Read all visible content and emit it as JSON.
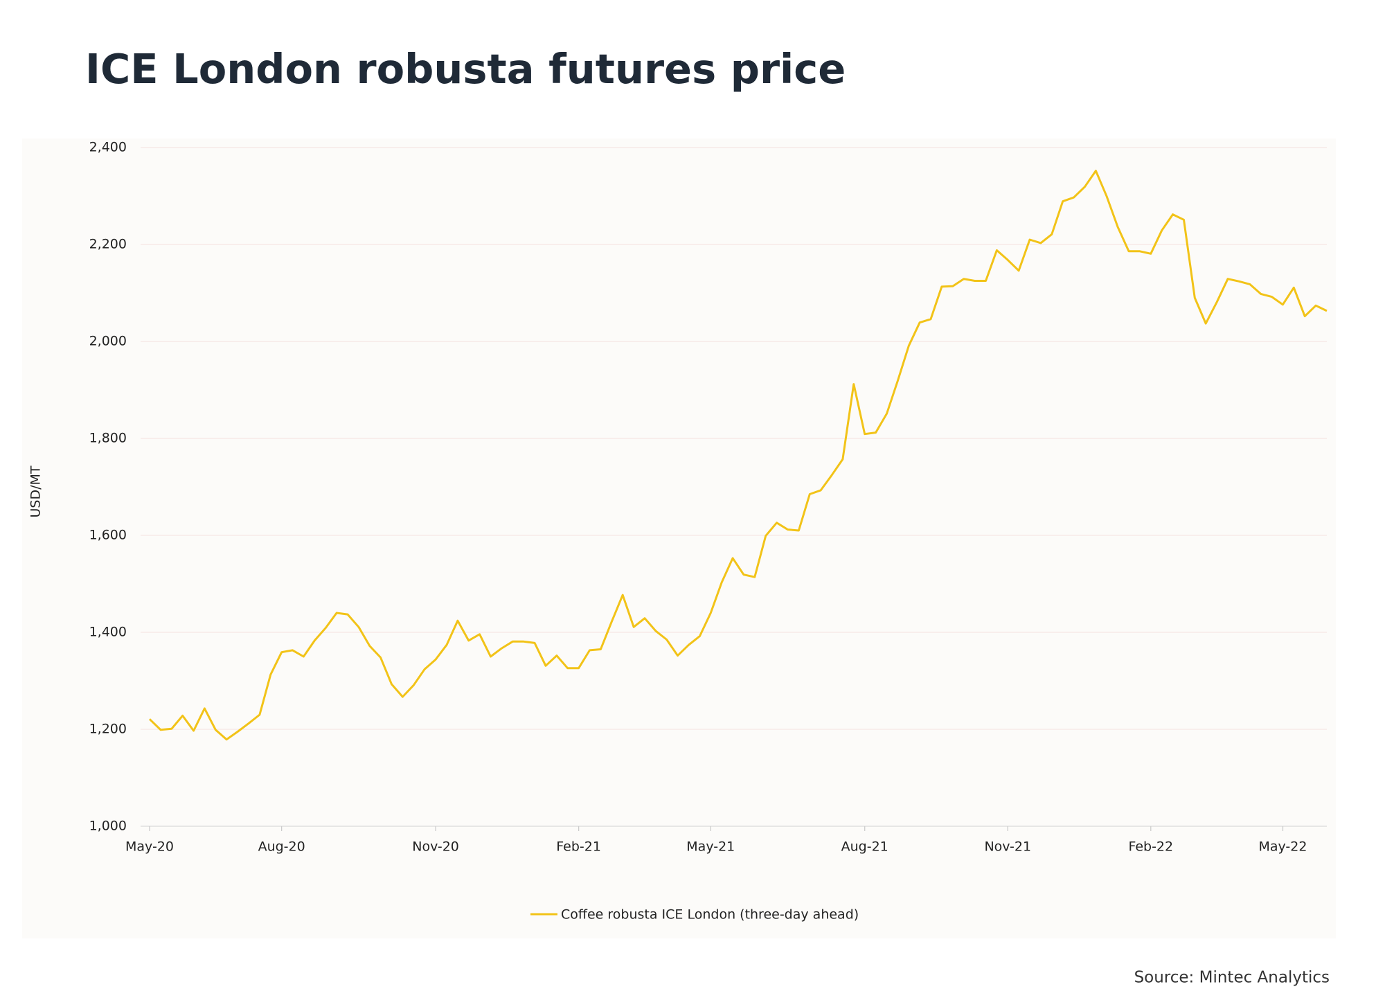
{
  "chart_data": {
    "type": "line",
    "title": "ICE London robusta futures price",
    "y_label": "USD/MT",
    "source": "Source: Mintec Analytics",
    "categories": [
      "May-20",
      null,
      null,
      null,
      null,
      null,
      null,
      null,
      null,
      null,
      null,
      null,
      "Aug-20",
      null,
      null,
      null,
      null,
      null,
      null,
      null,
      null,
      null,
      null,
      null,
      null,
      null,
      "Nov-20",
      null,
      null,
      null,
      null,
      null,
      null,
      null,
      null,
      null,
      null,
      null,
      null,
      "Feb-21",
      null,
      null,
      null,
      null,
      null,
      null,
      null,
      null,
      null,
      null,
      null,
      "May-21",
      null,
      null,
      null,
      null,
      null,
      null,
      null,
      null,
      null,
      null,
      null,
      null,
      null,
      "Aug-21",
      null,
      null,
      null,
      null,
      null,
      null,
      null,
      null,
      null,
      null,
      null,
      null,
      "Nov-21",
      null,
      null,
      null,
      null,
      null,
      null,
      null,
      null,
      null,
      null,
      null,
      null,
      "Feb-22",
      null,
      null,
      null,
      null,
      null,
      null,
      null,
      null,
      null,
      null,
      null,
      "May-22",
      null,
      null,
      null,
      null
    ],
    "series": [
      {
        "name": "Coffee robusta ICE London (three-day ahead)",
        "color": "#f2c318",
        "values": [
          1221,
          1199,
          1201,
          1228,
          1197,
          1243,
          1199,
          1179,
          1195,
          1212,
          1230,
          1313,
          1359,
          1363,
          1350,
          1383,
          1409,
          1440,
          1437,
          1411,
          1372,
          1348,
          1293,
          1267,
          1291,
          1324,
          1344,
          1374,
          1424,
          1383,
          1396,
          1350,
          1367,
          1381,
          1381,
          1378,
          1331,
          1352,
          1326,
          1326,
          1363,
          1365,
          1422,
          1477,
          1411,
          1429,
          1403,
          1385,
          1352,
          1374,
          1392,
          1440,
          1503,
          1553,
          1519,
          1514,
          1599,
          1626,
          1612,
          1610,
          1685,
          1693,
          1724,
          1757,
          1912,
          1809,
          1812,
          1851,
          1919,
          1991,
          2039,
          2046,
          2113,
          2114,
          2129,
          2125,
          2125,
          2188,
          2168,
          2146,
          2210,
          2203,
          2221,
          2289,
          2297,
          2319,
          2352,
          2299,
          2236,
          2186,
          2186,
          2181,
          2229,
          2262,
          2251,
          2090,
          2037,
          2081,
          2129,
          2124,
          2118,
          2098,
          2092,
          2076,
          2111,
          2052,
          2074,
          2063
        ]
      }
    ],
    "ylim": [
      1000,
      2400
    ],
    "yticks": [
      {
        "value": 1000,
        "label": "1,000"
      },
      {
        "value": 1200,
        "label": "1,200"
      },
      {
        "value": 1400,
        "label": "1,400"
      },
      {
        "value": 1600,
        "label": "1,600"
      },
      {
        "value": 1800,
        "label": "1,800"
      },
      {
        "value": 2000,
        "label": "2,000"
      },
      {
        "value": 2200,
        "label": "2,200"
      },
      {
        "value": 2400,
        "label": "2,400"
      }
    ],
    "grid": true
  }
}
